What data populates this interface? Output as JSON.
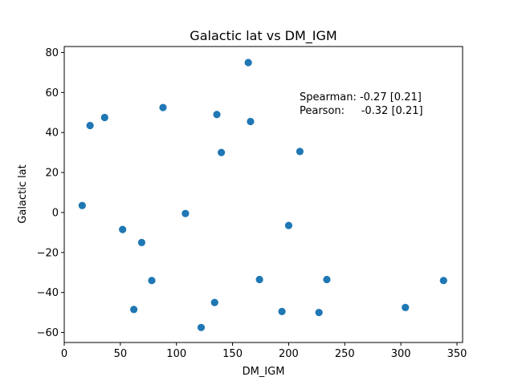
{
  "chart_data": {
    "type": "scatter",
    "title": "Galactic lat vs DM_IGM",
    "xlabel": "DM_IGM",
    "ylabel": "Galactic lat",
    "xlim": [
      0,
      355
    ],
    "ylim": [
      -65,
      83
    ],
    "xticks": [
      0,
      50,
      100,
      150,
      200,
      250,
      300,
      350
    ],
    "yticks": [
      -60,
      -40,
      -20,
      0,
      20,
      40,
      60,
      80
    ],
    "grid": false,
    "marker_color": "#1f77b4",
    "annotation": {
      "line1": "Spearman: -0.27 [0.21]",
      "line2": "Pearson:     -0.32 [0.21]"
    },
    "points": [
      {
        "x": 16,
        "y": 3.5
      },
      {
        "x": 23,
        "y": 43.5
      },
      {
        "x": 36,
        "y": 47.5
      },
      {
        "x": 52,
        "y": -8.5
      },
      {
        "x": 62,
        "y": -48.5
      },
      {
        "x": 69,
        "y": -15
      },
      {
        "x": 78,
        "y": -34
      },
      {
        "x": 88,
        "y": 52.5
      },
      {
        "x": 108,
        "y": -0.5
      },
      {
        "x": 122,
        "y": -57.5
      },
      {
        "x": 134,
        "y": -45
      },
      {
        "x": 136,
        "y": 49
      },
      {
        "x": 140,
        "y": 30
      },
      {
        "x": 164,
        "y": 75
      },
      {
        "x": 166,
        "y": 45.5
      },
      {
        "x": 174,
        "y": -33.5
      },
      {
        "x": 194,
        "y": -49.5
      },
      {
        "x": 200,
        "y": -6.5
      },
      {
        "x": 210,
        "y": 30.5
      },
      {
        "x": 227,
        "y": -50
      },
      {
        "x": 234,
        "y": -33.5
      },
      {
        "x": 304,
        "y": -47.5
      },
      {
        "x": 338,
        "y": -34
      }
    ]
  }
}
